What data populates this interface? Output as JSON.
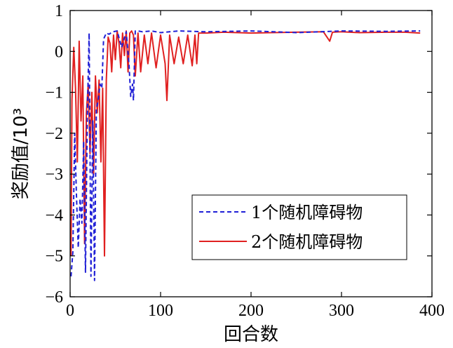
{
  "chart_data": {
    "type": "line",
    "xlabel": "回合数",
    "ylabel": "奖励值/10³",
    "xlim": [
      0,
      400
    ],
    "ylim": [
      -6,
      1
    ],
    "xticks": [
      0,
      100,
      200,
      300,
      400
    ],
    "yticks": [
      1,
      0,
      -1,
      -2,
      -3,
      -4,
      -5,
      -6
    ],
    "xtick_labels": [
      "0",
      "100",
      "200",
      "300",
      "400"
    ],
    "ytick_labels": [
      "1",
      "0",
      "−1",
      "−2",
      "−3",
      "−4",
      "−5",
      "−6"
    ],
    "grid": false,
    "legend_position": "lower-right",
    "series": [
      {
        "name": "1个随机障碍物",
        "color": "#1f1fd6",
        "style": "dashed",
        "x": [
          1,
          3,
          5,
          7,
          9,
          11,
          13,
          15,
          17,
          19,
          21,
          23,
          25,
          27,
          29,
          31,
          33,
          35,
          37,
          40,
          43,
          47,
          52,
          57,
          62,
          65,
          67,
          69,
          70,
          72,
          75,
          80,
          90,
          100,
          120,
          150,
          200,
          250,
          300,
          350,
          387
        ],
        "y": [
          -5.5,
          -4.9,
          -2.0,
          -3.5,
          -4.8,
          -3.6,
          -4.2,
          -2.2,
          -5.4,
          -1.6,
          0.45,
          -5.5,
          -1.7,
          -5.6,
          -1.4,
          -1.2,
          -0.8,
          -0.9,
          0.3,
          0.45,
          0.42,
          0.48,
          0.5,
          0.1,
          0.48,
          -0.3,
          -1.1,
          -0.8,
          -1.2,
          0.5,
          0.5,
          0.48,
          0.5,
          0.46,
          0.5,
          0.48,
          0.5,
          0.46,
          0.5,
          0.49,
          0.5
        ]
      },
      {
        "name": "2个随机障碍物",
        "color": "#e02020",
        "style": "solid",
        "x": [
          1,
          2,
          4,
          6,
          8,
          10,
          12,
          14,
          16,
          18,
          20,
          22,
          24,
          26,
          28,
          30,
          32,
          34,
          36,
          38,
          40,
          42,
          44,
          46,
          48,
          50,
          52,
          54,
          56,
          58,
          60,
          62,
          64,
          66,
          68,
          70,
          72,
          75,
          78,
          82,
          86,
          90,
          95,
          100,
          105,
          107,
          110,
          115,
          120,
          125,
          130,
          135,
          138,
          140,
          142,
          150,
          170,
          200,
          250,
          280,
          287,
          290,
          300,
          320,
          350,
          370,
          387
        ],
        "y": [
          -5.0,
          -1.2,
          0.1,
          -0.9,
          -2.7,
          0.25,
          -1.7,
          -0.6,
          -4.7,
          -1.5,
          -0.8,
          -2.5,
          -1.0,
          -3.0,
          -0.6,
          -1.5,
          -0.7,
          -2.7,
          -0.9,
          -5.0,
          -0.7,
          0.35,
          0.2,
          -0.5,
          0.4,
          -0.2,
          0.5,
          0.2,
          -0.4,
          0.45,
          -0.1,
          0.5,
          -0.5,
          0.45,
          0.5,
          0.4,
          -0.6,
          0.45,
          -0.5,
          0.4,
          -0.3,
          0.45,
          -0.4,
          0.4,
          -0.3,
          -1.2,
          0.4,
          -0.3,
          0.35,
          -0.3,
          0.4,
          -0.35,
          0.4,
          -0.3,
          0.45,
          0.45,
          0.47,
          0.45,
          0.47,
          0.48,
          0.25,
          0.47,
          0.48,
          0.46,
          0.47,
          0.47,
          0.45
        ]
      }
    ]
  }
}
